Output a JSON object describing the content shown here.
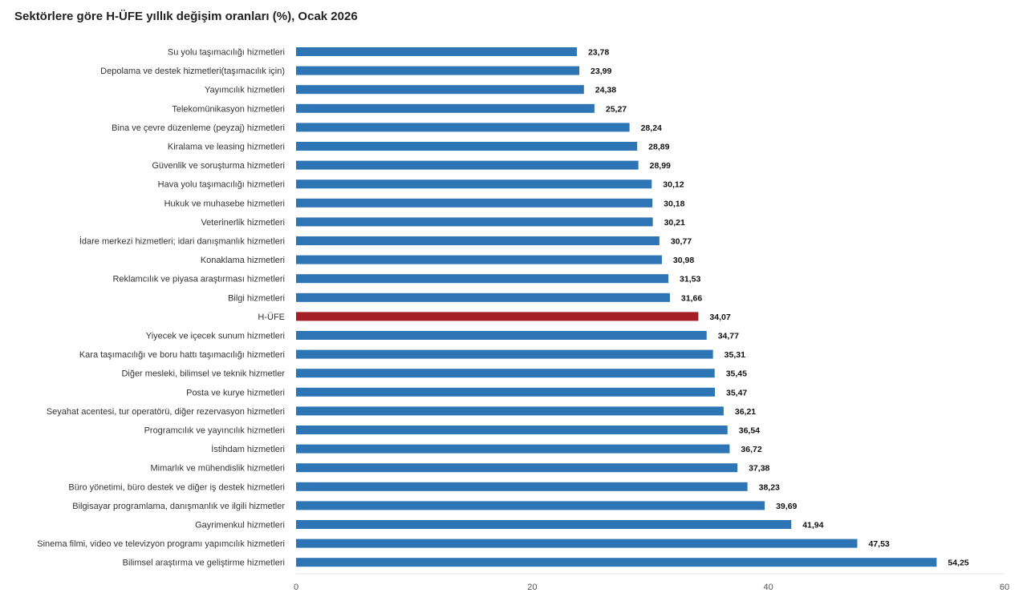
{
  "chart_data": {
    "type": "bar",
    "orientation": "horizontal",
    "title": "Sektörlere göre H-ÜFE yıllık değişim oranları (%), Ocak 2026",
    "xlim": [
      0,
      60
    ],
    "xticks": [
      0,
      20,
      40,
      60
    ],
    "grid": false,
    "legend": "none",
    "colors": {
      "default": "#2e75b6",
      "highlight": "#a31f24"
    },
    "highlight_category": "H-ÜFE",
    "categories": [
      "Su yolu taşımacılığı hizmetleri",
      "Depolama ve destek hizmetleri(taşımacılık için)",
      "Yayımcılık hizmetleri",
      "Telekomünikasyon hizmetleri",
      "Bina ve çevre düzenleme (peyzaj) hizmetleri",
      "Kiralama ve leasing hizmetleri",
      "Güvenlik ve soruşturma hizmetleri",
      "Hava yolu taşımacılığı hizmetleri",
      "Hukuk ve muhasebe hizmetleri",
      "Veterinerlik hizmetleri",
      "İdare merkezi hizmetleri; idari danışmanlık hizmetleri",
      "Konaklama hizmetleri",
      "Reklamcılık ve piyasa araştırması hizmetleri",
      "Bilgi hizmetleri",
      "H-ÜFE",
      "Yiyecek ve içecek sunum hizmetleri",
      "Kara taşımacılığı ve boru hattı taşımacılığı hizmetleri",
      "Diğer mesleki, bilimsel ve teknik hizmetler",
      "Posta ve kurye hizmetleri",
      "Seyahat acentesi, tur operatörü, diğer rezervasyon hizmetleri",
      "Programcılık ve yayıncılık hizmetleri",
      "İstihdam hizmetleri",
      "Mimarlık ve mühendislik hizmetleri",
      "Büro yönetimi, büro destek ve diğer iş destek hizmetleri",
      "Bilgisayar programlama, danışmanlık ve ilgili hizmetler",
      "Gayrimenkul hizmetleri",
      "Sinema filmi, video ve televizyon programı yapımcılık hizmetleri",
      "Bilimsel araştırma ve geliştirme hizmetleri"
    ],
    "values": [
      23.78,
      23.99,
      24.38,
      25.27,
      28.24,
      28.89,
      28.99,
      30.12,
      30.18,
      30.21,
      30.77,
      30.98,
      31.53,
      31.66,
      34.07,
      34.77,
      35.31,
      35.45,
      35.47,
      36.21,
      36.54,
      36.72,
      37.38,
      38.23,
      39.69,
      41.94,
      47.53,
      54.25
    ],
    "value_labels": [
      "23,78",
      "23,99",
      "24,38",
      "25,27",
      "28,24",
      "28,89",
      "28,99",
      "30,12",
      "30,18",
      "30,21",
      "30,77",
      "30,98",
      "31,53",
      "31,66",
      "34,07",
      "34,77",
      "35,31",
      "35,45",
      "35,47",
      "36,21",
      "36,54",
      "36,72",
      "37,38",
      "38,23",
      "39,69",
      "41,94",
      "47,53",
      "54,25"
    ]
  }
}
